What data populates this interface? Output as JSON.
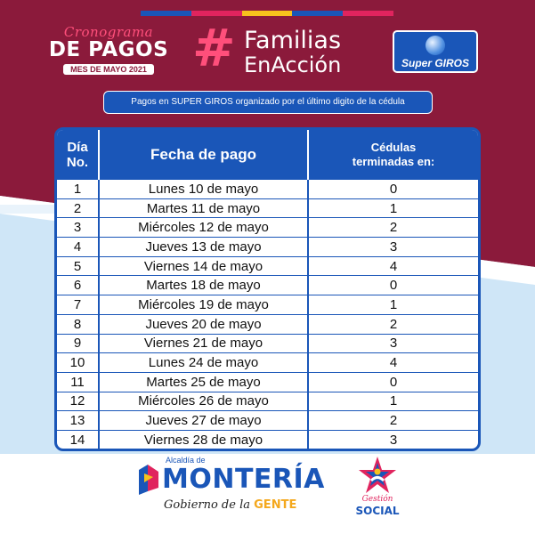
{
  "colors": {
    "maroon": "#8b1a3b",
    "light_blue": "#cfe6f7",
    "blue": "#1a56b8",
    "pink": "#ff4f7b",
    "colorbar": [
      "#1a56b8",
      "#e0245e",
      "#f7c21d",
      "#1a56b8",
      "#e0245e"
    ]
  },
  "header": {
    "crono_script": "Cronograma",
    "crono_big": "DE PAGOS",
    "crono_month": "MES DE MAYO 2021",
    "familias_hash": "#",
    "familias_line1": "Familias",
    "familias_line2": "EnAcción",
    "supergiros_text": "Super GIROS"
  },
  "subtitle": "Pagos en SUPER GIROS organizado por el último digito de la cédula",
  "table": {
    "headers": {
      "dia_line1": "Día",
      "dia_line2": "No.",
      "fecha": "Fecha de pago",
      "cedulas_line1": "Cédulas",
      "cedulas_line2": "terminadas en:"
    },
    "rows": [
      {
        "dia": "1",
        "fecha": "Lunes 10 de mayo",
        "digito": "0"
      },
      {
        "dia": "2",
        "fecha": "Martes 11 de mayo",
        "digito": "1"
      },
      {
        "dia": "3",
        "fecha": "Miércoles 12 de mayo",
        "digito": "2"
      },
      {
        "dia": "4",
        "fecha": "Jueves 13 de mayo",
        "digito": "3"
      },
      {
        "dia": "5",
        "fecha": "Viernes 14 de mayo",
        "digito": "4"
      },
      {
        "dia": "6",
        "fecha": "Martes 18 de mayo",
        "digito": "0"
      },
      {
        "dia": "7",
        "fecha": "Miércoles 19 de mayo",
        "digito": "1"
      },
      {
        "dia": "8",
        "fecha": "Jueves 20 de mayo",
        "digito": "2"
      },
      {
        "dia": "9",
        "fecha": "Viernes 21 de mayo",
        "digito": "3"
      },
      {
        "dia": "10",
        "fecha": "Lunes 24 de mayo",
        "digito": "4"
      },
      {
        "dia": "11",
        "fecha": "Martes 25 de mayo",
        "digito": "0"
      },
      {
        "dia": "12",
        "fecha": "Miércoles 26 de mayo",
        "digito": "1"
      },
      {
        "dia": "13",
        "fecha": "Jueves 27 de mayo",
        "digito": "2"
      },
      {
        "dia": "14",
        "fecha": "Viernes 28 de mayo",
        "digito": "3"
      }
    ]
  },
  "footer": {
    "alcaldia": "Alcaldía de",
    "monteria": "MONTERÍA",
    "gobierno": "Gobierno de la",
    "gente": "GENTE",
    "gestion": "Gestión",
    "social": "SOCIAL"
  }
}
